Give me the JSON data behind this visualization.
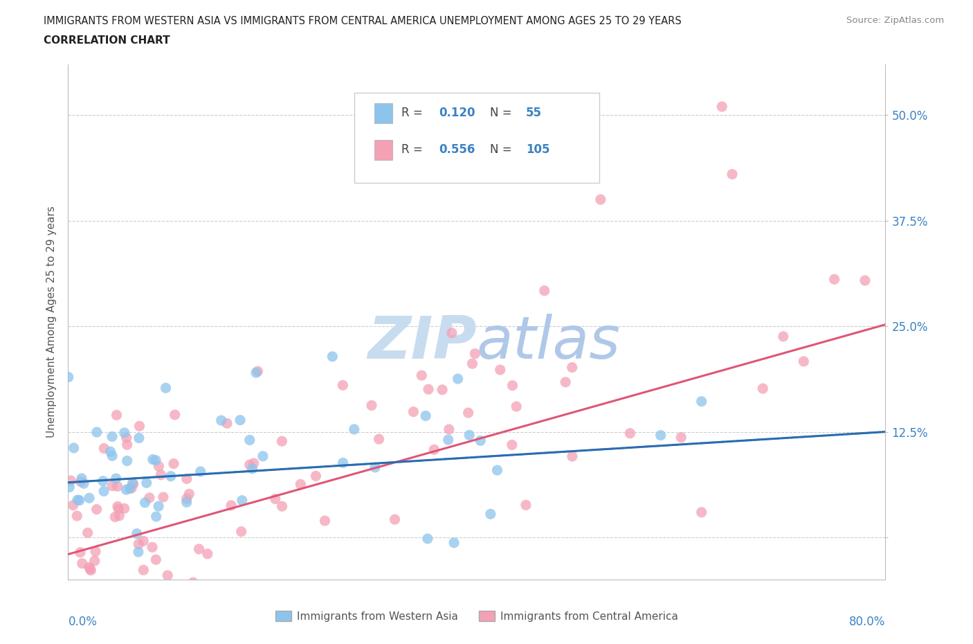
{
  "title_line1": "IMMIGRANTS FROM WESTERN ASIA VS IMMIGRANTS FROM CENTRAL AMERICA UNEMPLOYMENT AMONG AGES 25 TO 29 YEARS",
  "title_line2": "CORRELATION CHART",
  "source_text": "Source: ZipAtlas.com",
  "ylabel": "Unemployment Among Ages 25 to 29 years",
  "xlim": [
    0.0,
    0.8
  ],
  "ylim": [
    -0.05,
    0.56
  ],
  "yticks": [
    0.0,
    0.125,
    0.25,
    0.375,
    0.5
  ],
  "ytick_labels": [
    "",
    "12.5%",
    "25.0%",
    "37.5%",
    "50.0%"
  ],
  "legend_r1": "0.120",
  "legend_n1": "55",
  "legend_r2": "0.556",
  "legend_n2": "105",
  "color_blue": "#8DC4ED",
  "color_pink": "#F4A0B5",
  "color_blue_line_solid": "#2B6CB0",
  "color_pink_line_solid": "#E05575",
  "color_blue_dashed": "#5090D0",
  "watermark_color": "#C8DCF0",
  "grid_color": "#CCCCCC",
  "bg_color": "#FFFFFF",
  "title_color": "#222222",
  "axis_label_color": "#555555",
  "tick_label_color_blue": "#3B82C4",
  "source_color": "#888888",
  "legend_box_edge": "#CCCCCC"
}
